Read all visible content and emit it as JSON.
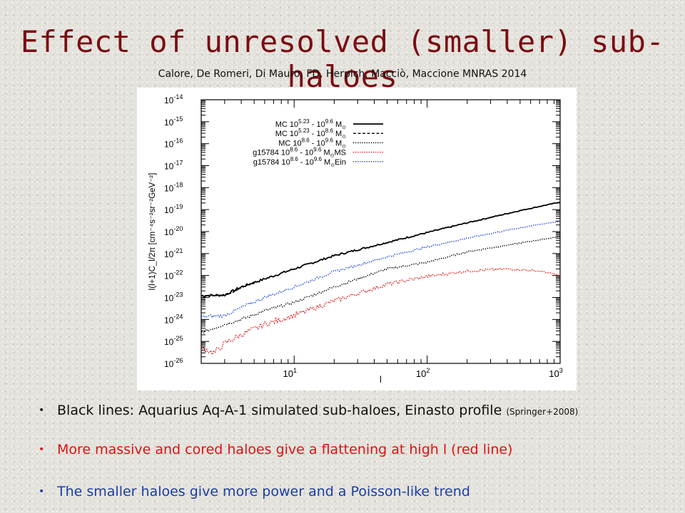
{
  "slide": {
    "title": "Effect of unresolved (smaller) sub-haloes",
    "citation": "Calore, De Romeri, Di Mauro, FD, Herpich, Macciò, Maccione MNRAS 2014",
    "bullets": [
      {
        "text": "Black lines: Aquarius Aq-A-1 simulated sub-haloes, Einasto profile",
        "ref": "(Springer+2008)",
        "color": "#111111"
      },
      {
        "text": "More massive and cored haloes give a flattening at high l (red line)",
        "color": "#e01010"
      },
      {
        "text": "The smaller haloes give more power and a Poisson-like trend",
        "color": "#1a3ea8"
      }
    ]
  },
  "chart_data": {
    "type": "line",
    "xlabel": "l",
    "ylabel": "l(l+1)C_l/2π [cm⁻⁴s⁻²sr⁻²GeV⁻²]",
    "xscale": "log",
    "yscale": "log",
    "xlim": [
      2,
      1000
    ],
    "ylim": [
      1e-26,
      1e-14
    ],
    "xticks": [
      {
        "exp": "1"
      },
      {
        "exp": "2"
      },
      {
        "exp": "3"
      }
    ],
    "yticks": [
      {
        "exp": "-26"
      },
      {
        "exp": "-25"
      },
      {
        "exp": "-24"
      },
      {
        "exp": "-23"
      },
      {
        "exp": "-22"
      },
      {
        "exp": "-21"
      },
      {
        "exp": "-20"
      },
      {
        "exp": "-19"
      },
      {
        "exp": "-18"
      },
      {
        "exp": "-17"
      },
      {
        "exp": "-16"
      },
      {
        "exp": "-15"
      },
      {
        "exp": "-14"
      }
    ],
    "legend_position": "top-left",
    "legend": [
      {
        "prefix": "MC 10",
        "sup1": "5.23",
        "mid": " - 10",
        "sup2": "9.6",
        "unit": " M",
        "suffix": ""
      },
      {
        "prefix": "MC 10",
        "sup1": "5.23",
        "mid": " - 10",
        "sup2": "8.6",
        "unit": " M",
        "suffix": ""
      },
      {
        "prefix": "MC 10",
        "sup1": "8.6",
        "mid": " - 10",
        "sup2": "9.6",
        "unit": " M",
        "suffix": ""
      },
      {
        "prefix": "g15784 10",
        "sup1": "8.6",
        "mid": " - 10",
        "sup2": "9.6",
        "unit": " M",
        "suffix": "MS"
      },
      {
        "prefix": "g15784 10",
        "sup1": "8.6",
        "mid": " - 10",
        "sup2": "9.6",
        "unit": " M",
        "suffix": "Ein"
      }
    ],
    "series": [
      {
        "name": "MC 10^5.23 - 10^9.6 M☉",
        "color": "#000000",
        "dash": "solid",
        "x": [
          2,
          3,
          4,
          6,
          10,
          20,
          50,
          100,
          200,
          500,
          1000
        ],
        "y": [
          1.2e-23,
          1.3e-23,
          3e-23,
          7e-23,
          2e-22,
          8e-22,
          3.2e-21,
          9e-21,
          2.5e-20,
          9e-20,
          2.2e-19
        ]
      },
      {
        "name": "MC 10^5.23 - 10^8.6 M☉",
        "color": "#000000",
        "dash": "dashed",
        "x": [
          2,
          3,
          3.5,
          4,
          5
        ],
        "y": [
          1.2e-23,
          1.25e-23,
          1.8e-23,
          2.8e-23,
          5e-23
        ]
      },
      {
        "name": "MC 10^8.6 - 10^9.6 M☉",
        "color": "#000000",
        "dash": "dotted",
        "x": [
          2,
          3,
          4,
          6,
          10,
          20,
          50,
          100,
          200,
          500,
          1000
        ],
        "y": [
          2.5e-25,
          6e-25,
          1e-24,
          2.5e-24,
          6e-24,
          3e-23,
          2e-22,
          4e-22,
          1.2e-21,
          3e-21,
          6e-21
        ]
      },
      {
        "name": "g15784 10^8.6 - 10^9.6 M☉MS",
        "color": "#e01010",
        "dash": "dotted",
        "x": [
          2,
          2.5,
          3,
          4,
          6,
          10,
          20,
          50,
          100,
          200,
          400,
          700,
          1000
        ],
        "y": [
          5e-26,
          3e-26,
          8e-26,
          2e-25,
          6e-25,
          1.5e-24,
          7e-24,
          4e-23,
          9e-23,
          1.6e-22,
          2e-22,
          1.6e-22,
          1e-22
        ]
      },
      {
        "name": "g15784 10^8.6 - 10^9.6 M☉Ein",
        "color": "#1a3ed8",
        "dash": "dotted",
        "x": [
          2,
          3,
          4,
          6,
          10,
          20,
          50,
          100,
          200,
          500,
          1000
        ],
        "y": [
          1.3e-24,
          1.5e-24,
          3.5e-24,
          1e-23,
          3e-23,
          1.5e-22,
          7e-22,
          2e-21,
          5e-21,
          1.5e-20,
          3e-20
        ]
      }
    ]
  }
}
